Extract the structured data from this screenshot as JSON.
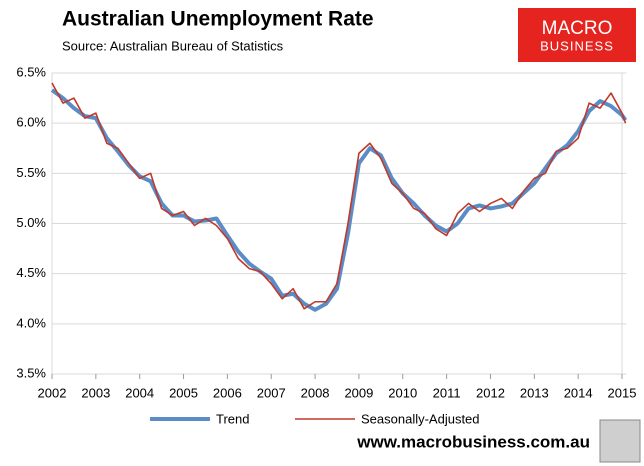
{
  "chart_data": {
    "type": "line",
    "title": "Australian Unemployment Rate",
    "subtitle": "Source: Australian Bureau of Statistics",
    "x": [
      2002,
      2002.25,
      2002.5,
      2002.75,
      2003,
      2003.25,
      2003.5,
      2003.75,
      2004,
      2004.25,
      2004.5,
      2004.75,
      2005,
      2005.25,
      2005.5,
      2005.75,
      2006,
      2006.25,
      2006.5,
      2006.75,
      2007,
      2007.25,
      2007.5,
      2007.75,
      2008,
      2008.25,
      2008.5,
      2008.75,
      2009,
      2009.25,
      2009.5,
      2009.75,
      2010,
      2010.25,
      2010.5,
      2010.75,
      2011,
      2011.25,
      2011.5,
      2011.75,
      2012,
      2012.25,
      2012.5,
      2012.75,
      2013,
      2013.25,
      2013.5,
      2013.75,
      2014,
      2014.25,
      2014.5,
      2014.75,
      2015,
      2015.08
    ],
    "series": [
      {
        "name": "Trend",
        "color": "#5b8cc6",
        "width": 4,
        "values": [
          6.33,
          6.25,
          6.15,
          6.07,
          6.05,
          5.85,
          5.72,
          5.58,
          5.47,
          5.42,
          5.2,
          5.08,
          5.08,
          5.02,
          5.03,
          5.05,
          4.88,
          4.72,
          4.6,
          4.52,
          4.45,
          4.28,
          4.3,
          4.2,
          4.14,
          4.2,
          4.35,
          4.9,
          5.6,
          5.75,
          5.68,
          5.45,
          5.3,
          5.2,
          5.08,
          4.98,
          4.92,
          5.0,
          5.15,
          5.18,
          5.15,
          5.17,
          5.2,
          5.3,
          5.4,
          5.55,
          5.7,
          5.78,
          5.92,
          6.12,
          6.22,
          6.17,
          6.08,
          6.03
        ]
      },
      {
        "name": "Seasonally-Adjusted",
        "color": "#c0392b",
        "width": 1.6,
        "values": [
          6.4,
          6.2,
          6.25,
          6.05,
          6.1,
          5.8,
          5.75,
          5.6,
          5.45,
          5.5,
          5.15,
          5.08,
          5.12,
          4.98,
          5.05,
          4.98,
          4.85,
          4.65,
          4.55,
          4.52,
          4.4,
          4.25,
          4.35,
          4.15,
          4.22,
          4.22,
          4.4,
          5.0,
          5.7,
          5.8,
          5.65,
          5.4,
          5.3,
          5.15,
          5.1,
          4.95,
          4.88,
          5.1,
          5.2,
          5.12,
          5.2,
          5.25,
          5.15,
          5.32,
          5.45,
          5.5,
          5.72,
          5.75,
          5.85,
          6.2,
          6.15,
          6.3,
          6.1,
          6.0
        ]
      }
    ],
    "xlim": [
      2002,
      2015.1
    ],
    "xticks": [
      2002,
      2003,
      2004,
      2005,
      2006,
      2007,
      2008,
      2009,
      2010,
      2011,
      2012,
      2013,
      2014,
      2015
    ],
    "ylim": [
      3.5,
      6.5
    ],
    "yticks": [
      {
        "value": 3.5,
        "label": "3.5%"
      },
      {
        "value": 4,
        "label": "4.0%"
      },
      {
        "value": 4.5,
        "label": "4.5%"
      },
      {
        "value": 5,
        "label": "5.0%"
      },
      {
        "value": 5.5,
        "label": "5.5%"
      },
      {
        "value": 6,
        "label": "6.0%"
      },
      {
        "value": 6.5,
        "label": "6.5%"
      }
    ],
    "grid": true
  },
  "logo": {
    "line1": "MACRO",
    "line2": "BUSINESS"
  },
  "footer": "www.macrobusiness.com.au"
}
